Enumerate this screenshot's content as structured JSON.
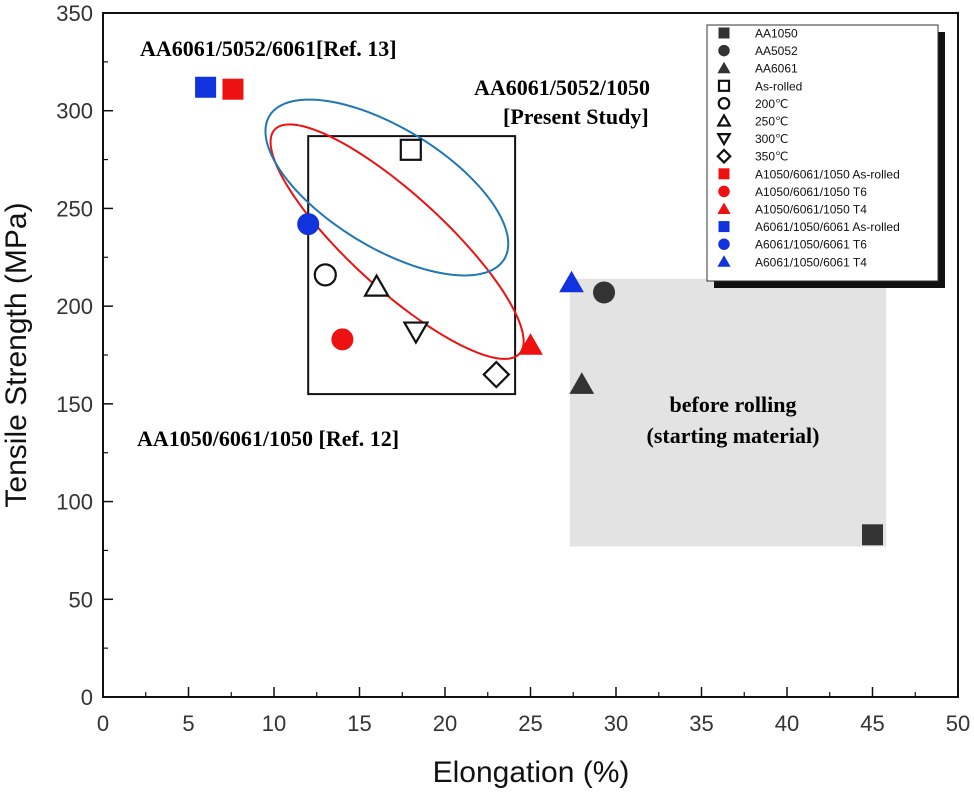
{
  "chart_data": {
    "type": "scatter",
    "xlabel": "Elongation (%)",
    "ylabel": "Tensile Strength (MPa)",
    "xlim": [
      0,
      50
    ],
    "ylim": [
      0,
      350
    ],
    "xticks": [
      0,
      5,
      10,
      15,
      20,
      25,
      30,
      35,
      40,
      45,
      50
    ],
    "yticks": [
      0,
      50,
      100,
      150,
      200,
      250,
      300,
      350
    ],
    "grid": false,
    "legend_position": "top-right",
    "colors": {
      "black": "#222222",
      "red": "#ee1111",
      "blue": "#1133dd",
      "dark": "#333333",
      "shade": "#e3e3e3",
      "blue_annot": "#1f77b4"
    },
    "series": [
      {
        "name": "AA1050",
        "marker": "square-filled",
        "color": "#333333",
        "points": [
          {
            "x": 45,
            "y": 83
          }
        ]
      },
      {
        "name": "AA5052",
        "marker": "circle-filled",
        "color": "#333333",
        "points": [
          {
            "x": 29.3,
            "y": 207
          }
        ]
      },
      {
        "name": "AA6061",
        "marker": "triangle-filled",
        "color": "#333333",
        "points": [
          {
            "x": 28,
            "y": 160
          }
        ]
      },
      {
        "name": "As-rolled",
        "marker": "square-open",
        "color": "#111111",
        "points": [
          {
            "x": 18,
            "y": 280
          }
        ]
      },
      {
        "name": "200℃",
        "marker": "circle-open",
        "color": "#111111",
        "points": [
          {
            "x": 13,
            "y": 216
          }
        ]
      },
      {
        "name": "250℃",
        "marker": "triangle-open",
        "color": "#111111",
        "points": [
          {
            "x": 16,
            "y": 210
          }
        ]
      },
      {
        "name": "300℃",
        "marker": "triangle-down-open",
        "color": "#111111",
        "points": [
          {
            "x": 18.3,
            "y": 187
          }
        ]
      },
      {
        "name": "350℃",
        "marker": "diamond-open",
        "color": "#111111",
        "points": [
          {
            "x": 23,
            "y": 165
          }
        ]
      },
      {
        "name": "A1050/6061/1050 As-rolled",
        "marker": "square-filled",
        "color": "#ee1111",
        "points": [
          {
            "x": 7.6,
            "y": 311
          }
        ]
      },
      {
        "name": "A1050/6061/1050 T6",
        "marker": "circle-filled",
        "color": "#ee1111",
        "points": [
          {
            "x": 14,
            "y": 183
          }
        ]
      },
      {
        "name": "A1050/6061/1050 T4",
        "marker": "triangle-filled",
        "color": "#ee1111",
        "points": [
          {
            "x": 25,
            "y": 180
          }
        ]
      },
      {
        "name": "A6061/1050/6061 As-rolled",
        "marker": "square-filled",
        "color": "#1133dd",
        "points": [
          {
            "x": 6,
            "y": 312
          }
        ]
      },
      {
        "name": "A6061/1050/6061 T6",
        "marker": "circle-filled",
        "color": "#1133dd",
        "points": [
          {
            "x": 12,
            "y": 242
          }
        ]
      },
      {
        "name": "A6061/1050/6061 T4",
        "marker": "triangle-filled",
        "color": "#1133dd",
        "points": [
          {
            "x": 27.4,
            "y": 212
          }
        ]
      }
    ],
    "regions": {
      "shaded": {
        "x": [
          27.3,
          45.8
        ],
        "y": [
          77,
          214
        ],
        "color": "#e3e3e3"
      },
      "present_box": {
        "x": [
          12,
          24.1
        ],
        "y": [
          155,
          287
        ]
      }
    },
    "ellipses": [
      {
        "name": "red",
        "color": "#ee1111",
        "center": [
          17.2,
          233
        ],
        "semi_axis_x": 7.4,
        "semi_axis_y": 60,
        "corr": -0.85
      },
      {
        "name": "blue",
        "color": "#1f77b4",
        "center": [
          16.6,
          260.7
        ],
        "semi_axis_x": 7.1,
        "semi_axis_y": 45,
        "corr": -0.64
      }
    ],
    "annotations": [
      {
        "text": "AA6061/5052/6061[Ref. 13]",
        "color": "#1f77b4"
      },
      {
        "text": "AA6061/5052/1050",
        "color": "#111111"
      },
      {
        "text": "[Present Study]",
        "color": "#111111"
      },
      {
        "text": "AA1050/6061/1050 [Ref. 12]",
        "color": "#ee1111"
      },
      {
        "text": "before rolling",
        "color": "#111111"
      },
      {
        "text": "(starting material)",
        "color": "#111111"
      }
    ]
  }
}
